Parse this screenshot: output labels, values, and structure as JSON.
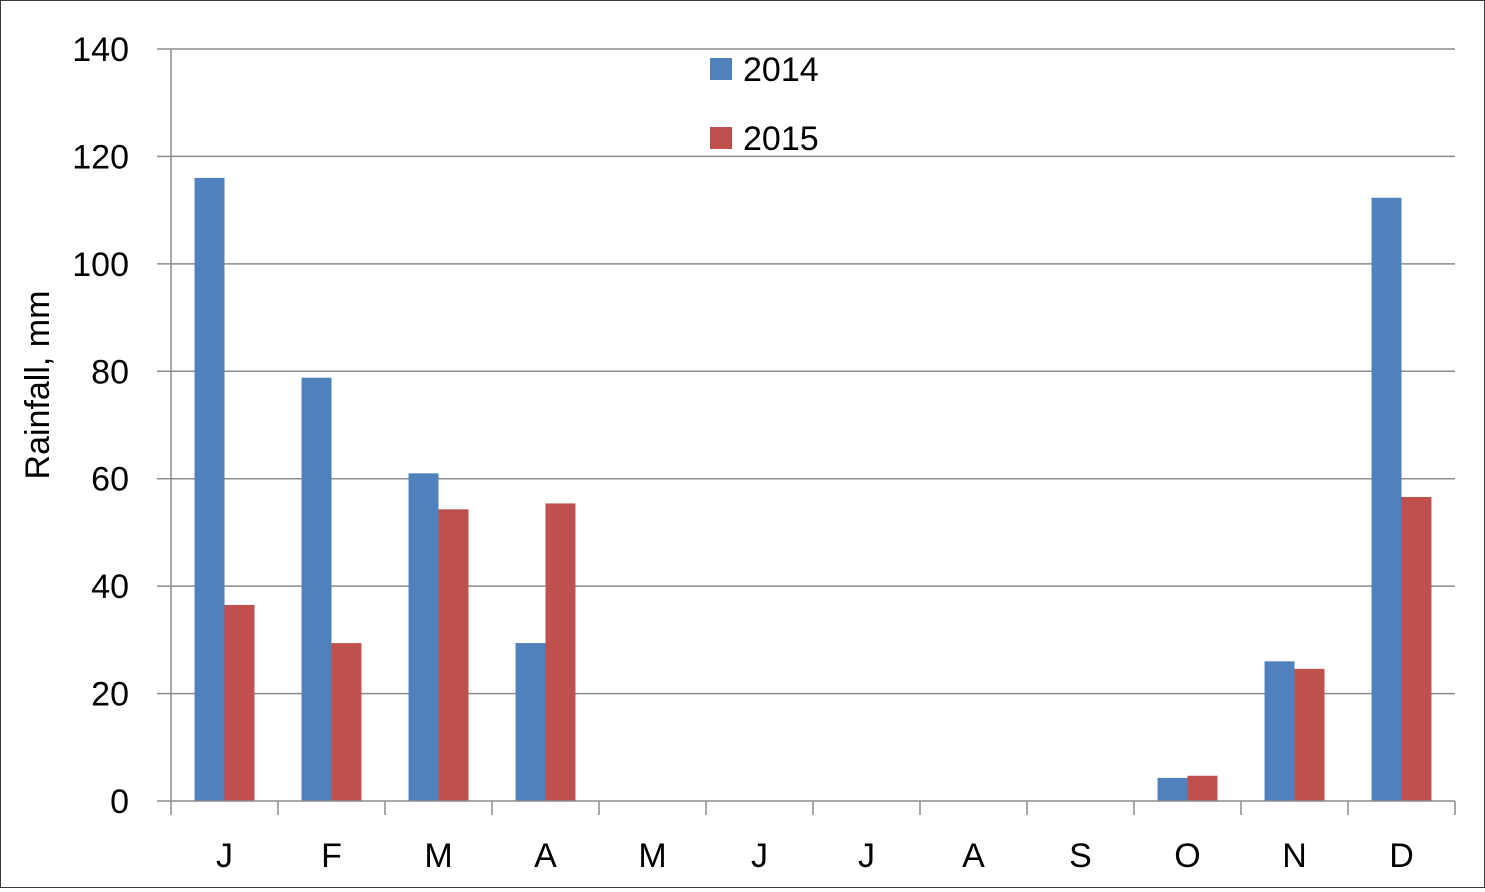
{
  "chart_data": {
    "type": "bar",
    "title": "",
    "xlabel": "",
    "ylabel": "Rainfall, mm",
    "ylim": [
      0,
      140
    ],
    "yticks": [
      0,
      20,
      40,
      60,
      80,
      100,
      120,
      140
    ],
    "grid": true,
    "legend_position": "top-center",
    "categories": [
      "J",
      "F",
      "M",
      "A",
      "M",
      "J",
      "J",
      "A",
      "S",
      "O",
      "N",
      "D"
    ],
    "series": [
      {
        "name": "2014",
        "color": "#4F81BD",
        "values": [
          116,
          78.8,
          61,
          29.4,
          0,
          0,
          0,
          0,
          0,
          4.3,
          26,
          112.3
        ]
      },
      {
        "name": "2015",
        "color": "#C0504D",
        "values": [
          36.5,
          29.4,
          54.3,
          55.4,
          0,
          0,
          0,
          0,
          0,
          4.7,
          24.6,
          56.6
        ]
      }
    ]
  }
}
